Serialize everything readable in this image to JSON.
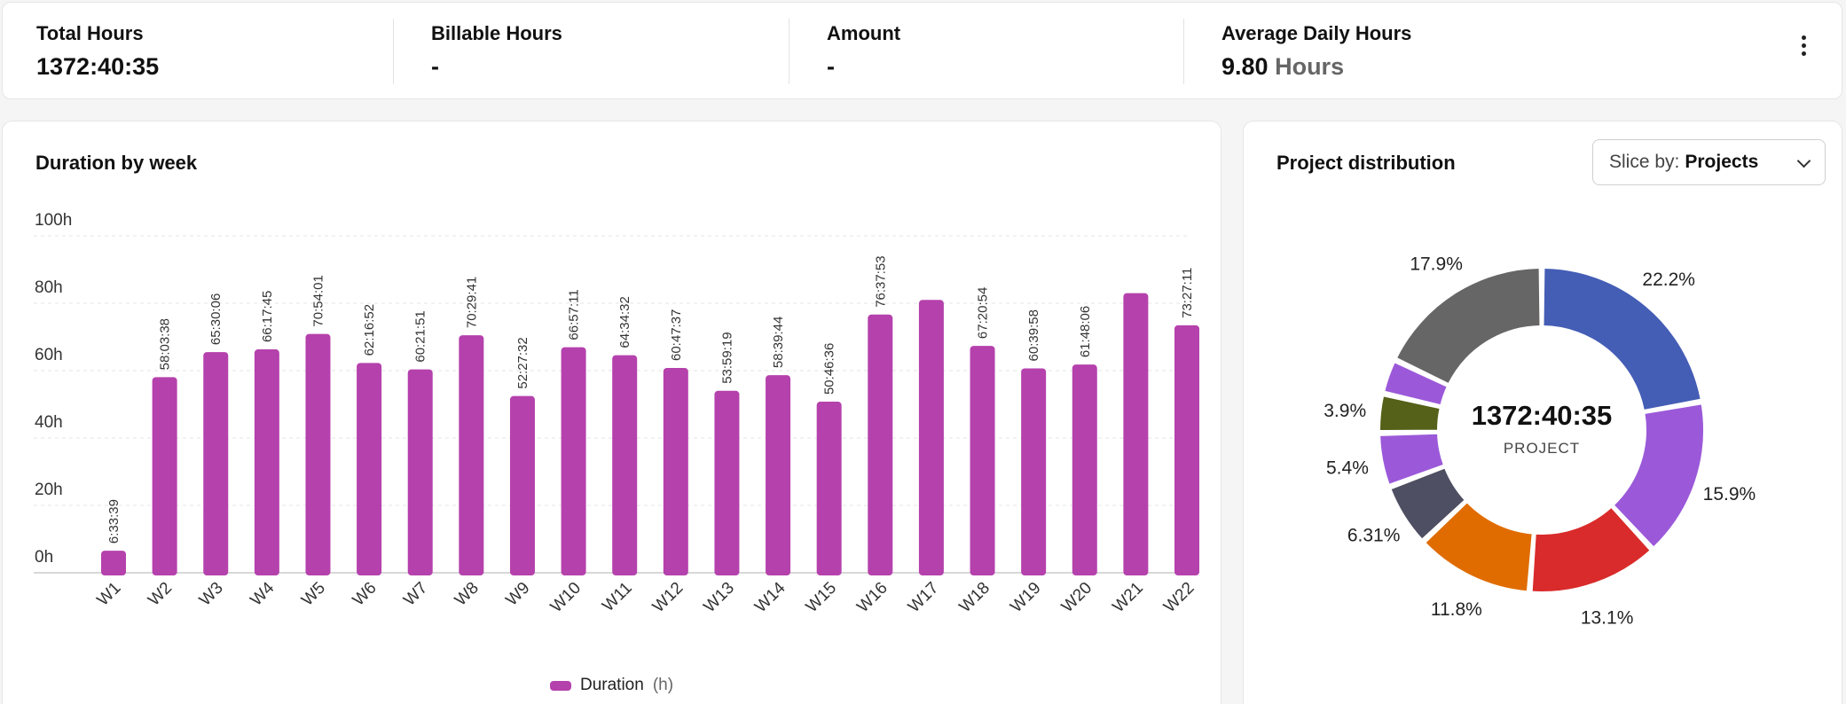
{
  "summary": {
    "stats": [
      {
        "label": "Total Hours",
        "value": "1372:40:35",
        "unit": ""
      },
      {
        "label": "Billable Hours",
        "value": "-",
        "unit": ""
      },
      {
        "label": "Amount",
        "value": "-",
        "unit": ""
      },
      {
        "label": "Average Daily Hours",
        "value": "9.80",
        "unit": "Hours"
      }
    ],
    "menu_icon": "more-vertical-icon"
  },
  "weekly": {
    "title": "Duration by week",
    "legend": {
      "name": "Duration",
      "unit": "(h)"
    }
  },
  "distribution": {
    "title": "Project distribution",
    "slice": {
      "label": "Slice by:",
      "value": "Projects"
    },
    "center_value": "1372:40:35",
    "center_label": "PROJECT"
  },
  "chart_data": [
    {
      "type": "bar",
      "title": "Duration by week",
      "categories": [
        "W1",
        "W2",
        "W3",
        "W4",
        "W5",
        "W6",
        "W7",
        "W8",
        "W9",
        "W10",
        "W11",
        "W12",
        "W13",
        "W14",
        "W15",
        "W16",
        "W17",
        "W18",
        "W19",
        "W20",
        "W21",
        "W22"
      ],
      "series": [
        {
          "name": "Duration",
          "values": [
            6.56,
            58.06,
            65.5,
            66.3,
            70.9,
            62.28,
            60.36,
            70.49,
            52.46,
            66.95,
            64.58,
            60.79,
            54.0,
            58.66,
            50.78,
            76.63,
            81.0,
            67.35,
            60.67,
            61.8,
            83.0,
            73.45
          ],
          "labels": [
            "6:33:39",
            "58:03:38",
            "65:30:06",
            "66:17:45",
            "70:54:01",
            "62:16:52",
            "60:21:51",
            "70:29:41",
            "52:27:32",
            "66:57:11",
            "64:34:32",
            "60:47:37",
            "53:59:19",
            "58:39:44",
            "50:46:36",
            "76:37:53",
            "",
            "67:20:54",
            "60:39:58",
            "61:48:06",
            "",
            "73:27:11"
          ]
        }
      ],
      "yticks": [
        "0h",
        "20h",
        "40h",
        "60h",
        "80h",
        "100h"
      ],
      "ylim": [
        0,
        100
      ],
      "color": "#b541ac",
      "grid": true,
      "legend_position": "bottom-center"
    },
    {
      "type": "pie",
      "title": "Project distribution",
      "donut": true,
      "slices": [
        {
          "label": "22.2%",
          "value": 22.2,
          "color": "#445db5"
        },
        {
          "label": "15.9%",
          "value": 15.9,
          "color": "#9b59d9"
        },
        {
          "label": "13.1%",
          "value": 13.1,
          "color": "#d92b2b"
        },
        {
          "label": "11.8%",
          "value": 11.8,
          "color": "#e06c00"
        },
        {
          "label": "6.31%",
          "value": 6.31,
          "color": "#4f4f63"
        },
        {
          "label": "5.4%",
          "value": 5.4,
          "color": "#9b59d9"
        },
        {
          "label": "3.9%",
          "value": 3.9,
          "color": "#556018"
        },
        {
          "label": "",
          "value": 3.5,
          "color": "#9b59d9"
        },
        {
          "label": "17.9%",
          "value": 17.9,
          "color": "#666666"
        }
      ]
    }
  ]
}
